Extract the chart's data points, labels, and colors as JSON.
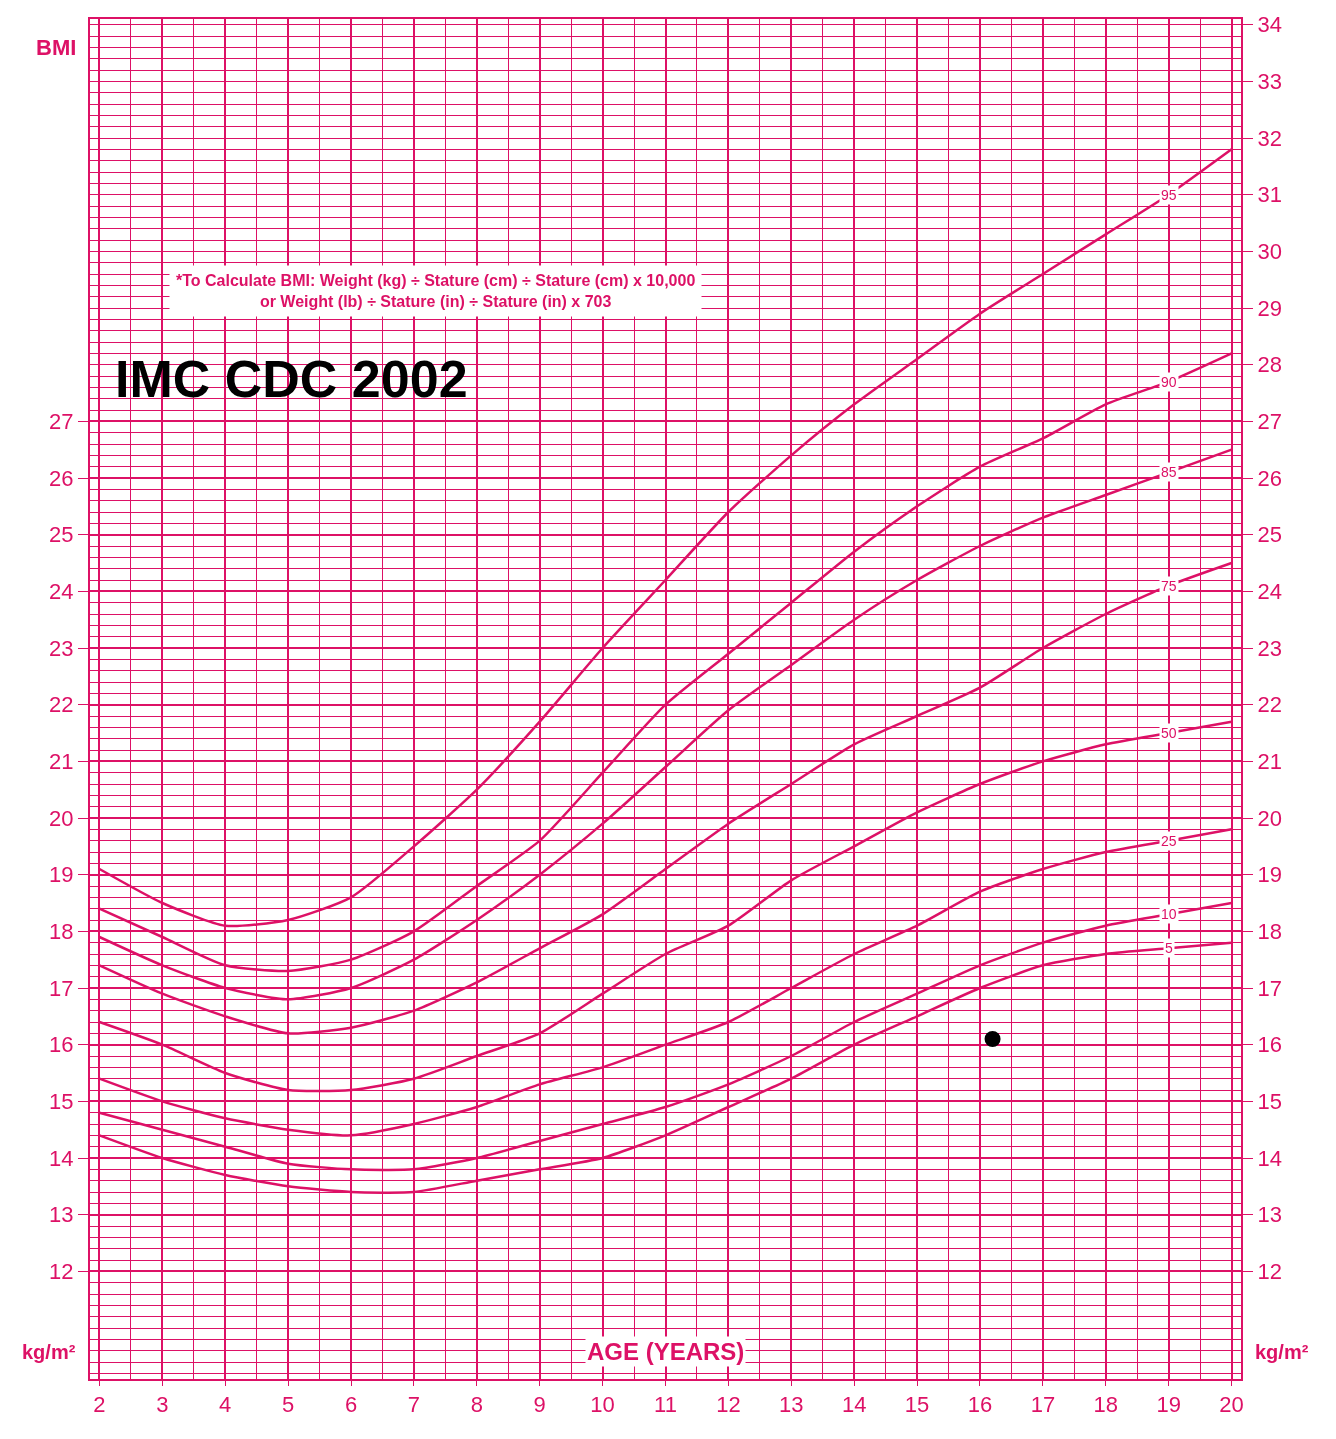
{
  "chart_data": {
    "type": "line",
    "title": "IMC CDC 2002",
    "ylabel": "BMI",
    "xlabel": "AGE (YEARS)",
    "annotations": [
      "*To Calculate BMI: Weight (kg) ÷ Stature (cm) ÷ Stature (cm) x 10,000",
      "or Weight (lb) ÷ Stature (in) ÷ Stature (in) x 703",
      "kg/m²",
      "kg/m²"
    ],
    "x": [
      2,
      3,
      4,
      5,
      6,
      7,
      8,
      9,
      10,
      11,
      12,
      13,
      14,
      15,
      16,
      17,
      18,
      19,
      20
    ],
    "series": [
      {
        "name": "95",
        "color": "#dd1166",
        "values": [
          19.1,
          18.5,
          18.1,
          18.2,
          18.6,
          19.5,
          20.5,
          21.7,
          23.0,
          24.2,
          25.4,
          26.4,
          27.3,
          28.1,
          28.9,
          29.6,
          30.3,
          31.0,
          31.8
        ]
      },
      {
        "name": "90",
        "color": "#dd1166",
        "values": [
          18.4,
          17.9,
          17.4,
          17.3,
          17.5,
          18.0,
          18.8,
          19.6,
          20.8,
          22.0,
          22.9,
          23.8,
          24.7,
          25.5,
          26.2,
          26.7,
          27.3,
          27.7,
          28.2
        ]
      },
      {
        "name": "85",
        "color": "#dd1166",
        "values": [
          17.9,
          17.4,
          17.0,
          16.8,
          17.0,
          17.5,
          18.2,
          19.0,
          19.9,
          20.9,
          21.9,
          22.7,
          23.5,
          24.2,
          24.8,
          25.3,
          25.7,
          26.1,
          26.5
        ]
      },
      {
        "name": "75",
        "color": "#dd1166",
        "values": [
          17.4,
          16.9,
          16.5,
          16.2,
          16.3,
          16.6,
          17.1,
          17.7,
          18.3,
          19.1,
          19.9,
          20.6,
          21.3,
          21.8,
          22.3,
          23.0,
          23.6,
          24.1,
          24.5
        ]
      },
      {
        "name": "50",
        "color": "#dd1166",
        "values": [
          16.4,
          16.0,
          15.5,
          15.2,
          15.2,
          15.4,
          15.8,
          16.2,
          16.9,
          17.6,
          18.1,
          18.9,
          19.5,
          20.1,
          20.6,
          21.0,
          21.3,
          21.5,
          21.7
        ]
      },
      {
        "name": "25",
        "color": "#dd1166",
        "values": [
          15.4,
          15.0,
          14.7,
          14.5,
          14.4,
          14.6,
          14.9,
          15.3,
          15.6,
          16.0,
          16.4,
          17.0,
          17.6,
          18.1,
          18.7,
          19.1,
          19.4,
          19.6,
          19.8
        ]
      },
      {
        "name": "10",
        "color": "#dd1166",
        "values": [
          14.8,
          14.5,
          14.2,
          13.9,
          13.8,
          13.8,
          14.0,
          14.3,
          14.6,
          14.9,
          15.3,
          15.8,
          16.4,
          16.9,
          17.4,
          17.8,
          18.1,
          18.3,
          18.5
        ]
      },
      {
        "name": "5",
        "color": "#dd1166",
        "values": [
          14.4,
          14.0,
          13.7,
          13.5,
          13.4,
          13.4,
          13.6,
          13.8,
          14.0,
          14.4,
          14.9,
          15.4,
          16.0,
          16.5,
          17.0,
          17.4,
          17.6,
          17.7,
          17.8
        ]
      },
      {
        "type": "scatter",
        "color": "#000000",
        "marker": "circle",
        "x": [
          16.2
        ],
        "values": [
          16.1
        ]
      }
    ],
    "xlim": [
      1.85,
      20.15
    ],
    "ylim": [
      10.1,
      34.1
    ],
    "xticks": [
      2,
      3,
      4,
      5,
      6,
      7,
      8,
      9,
      10,
      11,
      12,
      13,
      14,
      15,
      16,
      17,
      18,
      19,
      20
    ],
    "yticks": [
      12,
      13,
      14,
      15,
      16,
      17,
      18,
      19,
      20,
      21,
      22,
      23,
      24,
      25,
      26,
      27
    ],
    "y2lim": [
      10.1,
      34.1
    ],
    "y2ticks": [
      12,
      13,
      14,
      15,
      16,
      17,
      18,
      19,
      20,
      21,
      22,
      23,
      24,
      25,
      26,
      27,
      28,
      29,
      30,
      31,
      32,
      33,
      34
    ],
    "grid": true,
    "legend": false,
    "line_style": "solid"
  }
}
